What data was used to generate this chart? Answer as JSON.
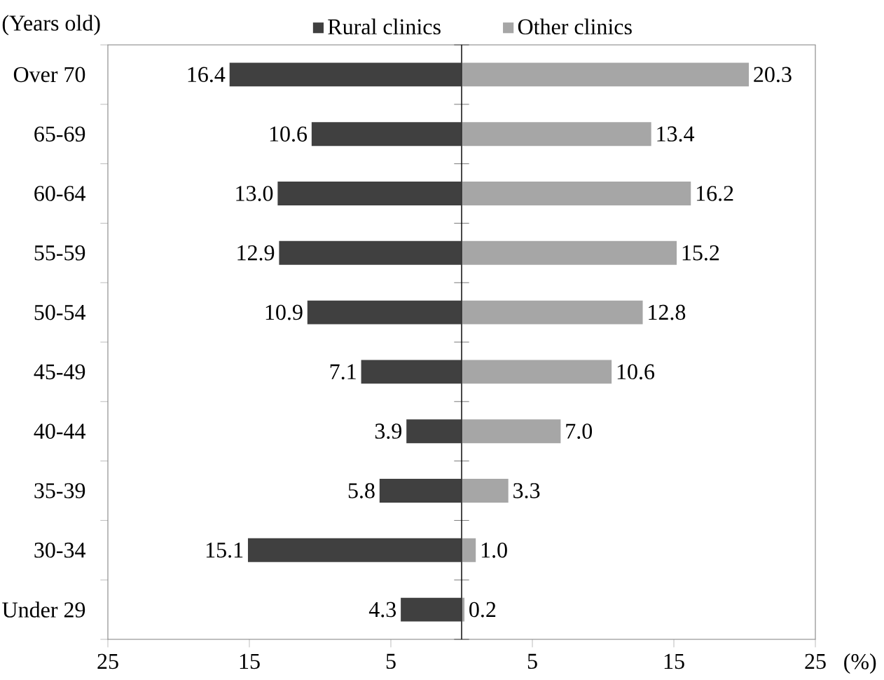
{
  "chart_data": [
    {
      "type": "bar",
      "orientation": "horizontal",
      "ylabel": "(Years old)",
      "categories": [
        "Over 70",
        "65-69",
        "60-64",
        "55-59",
        "50-54",
        "45-49",
        "40-44",
        "35-39",
        "30-34",
        "Under 29"
      ],
      "series": [
        {
          "name": "Rural clinics",
          "color": "#404040",
          "values": [
            16.4,
            10.6,
            13.0,
            12.9,
            10.9,
            7.1,
            3.9,
            5.8,
            15.1,
            4.3
          ],
          "value_labels": [
            "16.4",
            "10.6",
            "13.0",
            "12.9",
            "10.9",
            "7.1",
            "3.9",
            "5.8",
            "15.1",
            "4.3"
          ]
        }
      ],
      "xlim": [
        25,
        0
      ],
      "xticks": [
        25,
        15,
        5
      ],
      "legend": "top right"
    },
    {
      "type": "bar",
      "orientation": "horizontal",
      "xlabel": "(%)",
      "categories": [
        null,
        null,
        null,
        null,
        null,
        null,
        null,
        null,
        null,
        null
      ],
      "series": [
        {
          "name": "Other clinics",
          "color": "#a6a6a6",
          "values": [
            20.3,
            13.4,
            16.2,
            15.2,
            12.8,
            10.6,
            7.0,
            3.3,
            1.0,
            0.2
          ],
          "value_labels": [
            "20.3",
            "13.4",
            "16.2",
            "15.2",
            "12.8",
            "10.6",
            "7.0",
            "3.3",
            "1.0",
            "0.2"
          ]
        }
      ],
      "xlim": [
        0,
        25
      ],
      "xticks": [
        5,
        15,
        25
      ],
      "legend": "top left",
      "tick_labels": "x"
    }
  ]
}
